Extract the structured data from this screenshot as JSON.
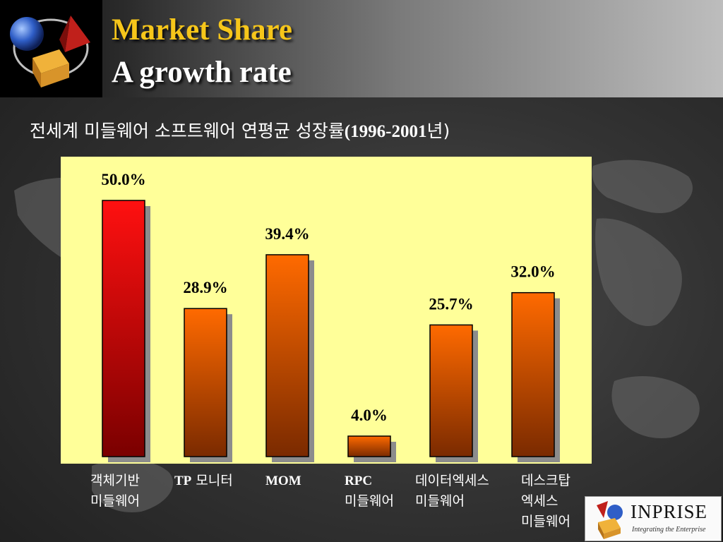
{
  "slide": {
    "title": "Market Share",
    "subtitle": "A growth rate",
    "heading_ko": "전세계 미들웨어 소프트웨어 연평균 성장률",
    "heading_year": "(1996-2001",
    "heading_suffix": "년)"
  },
  "branding": {
    "company": "INPRISE",
    "tagline": "Integrating the Enterprise"
  },
  "colors": {
    "title": "#f6c61a",
    "bar_top_first": "#ff1010",
    "bar_bottom_first": "#7a0000",
    "bar_top": "#ff6a00",
    "bar_bottom": "#7a2a00",
    "plot_bg": "#ffff99"
  },
  "chart_data": {
    "type": "bar",
    "title": "",
    "xlabel": "",
    "ylabel": "",
    "ylim": [
      0,
      50
    ],
    "categories": [
      "객체기반\n미들웨어",
      "TP 모니터",
      "MOM",
      "RPC\n미들웨어",
      "데이터엑세스\n미들웨어",
      "데스크탑\n엑세스\n미들웨어"
    ],
    "values": [
      50.0,
      28.9,
      39.4,
      4.0,
      25.7,
      32.0
    ],
    "data_labels": [
      "50.0%",
      "28.9%",
      "39.4%",
      "4.0%",
      "25.7%",
      "32.0%"
    ],
    "grid": false,
    "legend": "none"
  }
}
